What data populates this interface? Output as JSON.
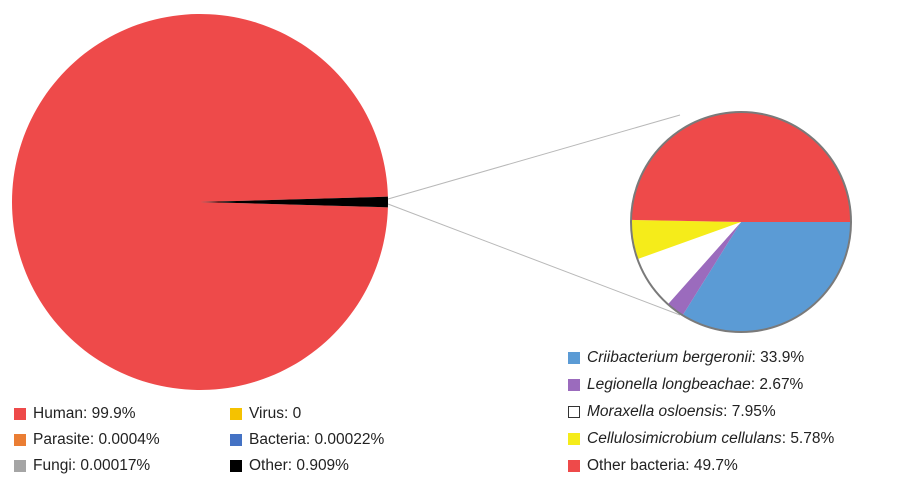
{
  "chart_data": [
    {
      "type": "pie",
      "slices": [
        {
          "label": "Human",
          "value": 99.9,
          "value_label": "99.9%",
          "color": "#ee4a4a"
        },
        {
          "label": "Parasite",
          "value": 0.0004,
          "value_label": "0.0004%",
          "color": "#ea7d33"
        },
        {
          "label": "Fungi",
          "value": 0.00017,
          "value_label": "0.00017%",
          "color": "#a5a5a5"
        },
        {
          "label": "Virus",
          "value": 0,
          "value_label": "0",
          "color": "#f5c200"
        },
        {
          "label": "Bacteria",
          "value": 0.00022,
          "value_label": "0.00022%",
          "color": "#4472c4"
        },
        {
          "label": "Other",
          "value": 0.909,
          "value_label": "0.909%",
          "color": "#000000"
        }
      ]
    },
    {
      "type": "pie",
      "slices": [
        {
          "label": "Criibacterium bergeronii",
          "value": 33.9,
          "value_label": "33.9%",
          "color": "#5b9bd5",
          "italic": true
        },
        {
          "label": "Legionella longbeachae",
          "value": 2.67,
          "value_label": "2.67%",
          "color": "#9b6bbd",
          "italic": true
        },
        {
          "label": "Moraxella osloensis",
          "value": 7.95,
          "value_label": "7.95%",
          "color": "#ffffff",
          "italic": true
        },
        {
          "label": "Cellulosimicrobium cellulans",
          "value": 5.78,
          "value_label": "5.78%",
          "color": "#f5ec1a",
          "italic": true
        },
        {
          "label": "Other bacteria",
          "value": 49.7,
          "value_label": "49.7%",
          "color": "#ee4a4a",
          "italic": false
        }
      ]
    }
  ]
}
